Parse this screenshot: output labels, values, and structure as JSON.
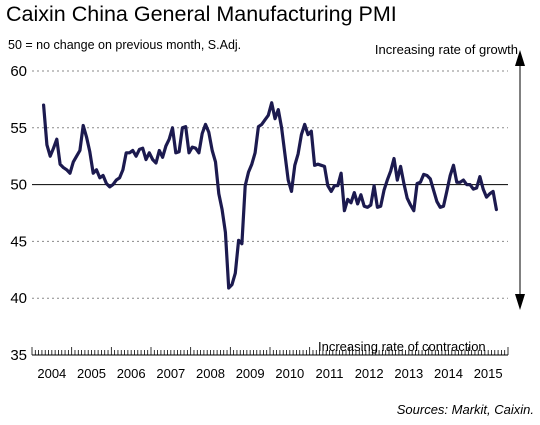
{
  "chart_data": {
    "type": "line",
    "title": "Caixin China General Manufacturing PMI",
    "subtitle": "50 = no change on previous month, S.Adj.",
    "annotations": {
      "top": "Increasing rate of growth",
      "bottom": "Increasing rate of contraction"
    },
    "source": "Sources: Markit, Caixin.",
    "xlabel": "",
    "ylabel": "",
    "ylim": [
      35,
      60
    ],
    "yticks": [
      35,
      40,
      45,
      50,
      55,
      60
    ],
    "x_categories": [
      "2004",
      "2005",
      "2006",
      "2007",
      "2008",
      "2009",
      "2010",
      "2011",
      "2012",
      "2013",
      "2014",
      "2015"
    ],
    "reference_line": 50,
    "grid": "horizontal dashed",
    "line_color": "#1c1a4f",
    "series": [
      {
        "start": "2004-04",
        "frequency": "monthly",
        "values": [
          57.0,
          53.5,
          52.5,
          53.2,
          54.0,
          51.8,
          51.5,
          51.3,
          51.0,
          52.0,
          52.5,
          53.0,
          55.2,
          54.2,
          52.9,
          51.0,
          51.3,
          50.6,
          50.8,
          50.1,
          49.8,
          50.0,
          50.4,
          50.6,
          51.3,
          52.8,
          52.8,
          53.0,
          52.5,
          53.1,
          53.2,
          52.2,
          52.8,
          52.2,
          51.9,
          53.0,
          52.4,
          53.4,
          54.0,
          55.0,
          52.8,
          52.9,
          55.0,
          55.1,
          52.8,
          53.3,
          53.2,
          52.8,
          54.5,
          55.3,
          54.6,
          53.0,
          52.0,
          49.2,
          47.8,
          45.8,
          40.9,
          41.2,
          42.2,
          45.1,
          44.8,
          49.9,
          51.1,
          51.8,
          52.8,
          55.1,
          55.3,
          55.7,
          56.1,
          57.2,
          55.8,
          56.6,
          55.0,
          52.7,
          50.4,
          49.4,
          51.7,
          52.7,
          54.4,
          55.3,
          54.4,
          54.7,
          51.7,
          51.8,
          51.7,
          51.6,
          49.9,
          49.4,
          49.9,
          49.9,
          51.0,
          47.7,
          48.7,
          48.4,
          49.3,
          48.3,
          49.1,
          48.1,
          48.0,
          48.2,
          49.9,
          48.0,
          48.1,
          49.5,
          50.4,
          51.2,
          52.3,
          50.4,
          51.6,
          50.1,
          48.8,
          48.2,
          47.7,
          50.1,
          50.2,
          50.9,
          50.8,
          50.5,
          49.5,
          48.5,
          48.0,
          48.1,
          49.4,
          50.8,
          51.7,
          50.2,
          50.2,
          50.4,
          50.0,
          50.0,
          49.6,
          49.7,
          50.7,
          49.6,
          48.9,
          49.2,
          49.4,
          47.8
        ]
      }
    ]
  }
}
